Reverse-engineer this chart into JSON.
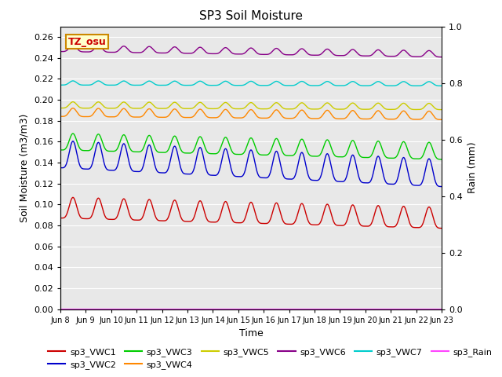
{
  "title": "SP3 Soil Moisture",
  "xlabel": "Time",
  "ylabel_left": "Soil Moisture (m3/m3)",
  "ylabel_right": "Rain (mm)",
  "xlim_days": [
    8,
    23
  ],
  "ylim_left": [
    0.0,
    0.27
  ],
  "ylim_right": [
    0.0,
    1.0
  ],
  "yticks_left": [
    0.0,
    0.02,
    0.04,
    0.06,
    0.08,
    0.1,
    0.12,
    0.14,
    0.16,
    0.18,
    0.2,
    0.22,
    0.24,
    0.26
  ],
  "yticks_right": [
    0.0,
    0.2,
    0.4,
    0.6,
    0.8,
    1.0
  ],
  "xtick_labels": [
    "Jun 8",
    "Jun 9",
    "Jun 10",
    "Jun 11",
    "Jun 12",
    "Jun 13",
    "Jun 14",
    "Jun 15",
    "Jun 16",
    "Jun 17",
    "Jun 18",
    "Jun 19",
    "Jun 20",
    "Jun 21",
    "Jun 22",
    "Jun 23"
  ],
  "bg_color": "#e8e8e8",
  "series": {
    "sp3_VWC1": {
      "color": "#cc0000",
      "base": 0.097,
      "amplitude": 0.01,
      "trend": -0.00065,
      "phase": 0.5
    },
    "sp3_VWC2": {
      "color": "#0000cc",
      "base": 0.148,
      "amplitude": 0.013,
      "trend": -0.0012,
      "phase": 0.5
    },
    "sp3_VWC3": {
      "color": "#00cc00",
      "base": 0.16,
      "amplitude": 0.008,
      "trend": -0.0006,
      "phase": 0.5
    },
    "sp3_VWC4": {
      "color": "#ff8800",
      "base": 0.188,
      "amplitude": 0.004,
      "trend": -0.0002,
      "phase": 0.5
    },
    "sp3_VWC5": {
      "color": "#cccc00",
      "base": 0.195,
      "amplitude": 0.003,
      "trend": -0.0001,
      "phase": 0.5
    },
    "sp3_VWC6": {
      "color": "#880088",
      "base": 0.249,
      "amplitude": 0.003,
      "trend": -0.00035,
      "phase": 0.5
    },
    "sp3_VWC7": {
      "color": "#00cccc",
      "base": 0.216,
      "amplitude": 0.002,
      "trend": -5e-05,
      "phase": 0.5
    },
    "sp3_Rain": {
      "color": "#ff44ff",
      "base": 0.0,
      "amplitude": 0.0,
      "trend": 0.0,
      "phase": 0.0
    }
  },
  "series_order": [
    "sp3_VWC1",
    "sp3_VWC2",
    "sp3_VWC3",
    "sp3_VWC4",
    "sp3_VWC5",
    "sp3_VWC6",
    "sp3_VWC7",
    "sp3_Rain"
  ],
  "legend_row1": [
    "sp3_VWC1",
    "sp3_VWC2",
    "sp3_VWC3",
    "sp3_VWC4",
    "sp3_VWC5",
    "sp3_VWC6"
  ],
  "legend_row2": [
    "sp3_VWC7",
    "sp3_Rain"
  ],
  "annotation_text": "TZ_osu",
  "annotation_facecolor": "#ffffcc",
  "annotation_edgecolor": "#cc8800",
  "linewidth": 1.0
}
